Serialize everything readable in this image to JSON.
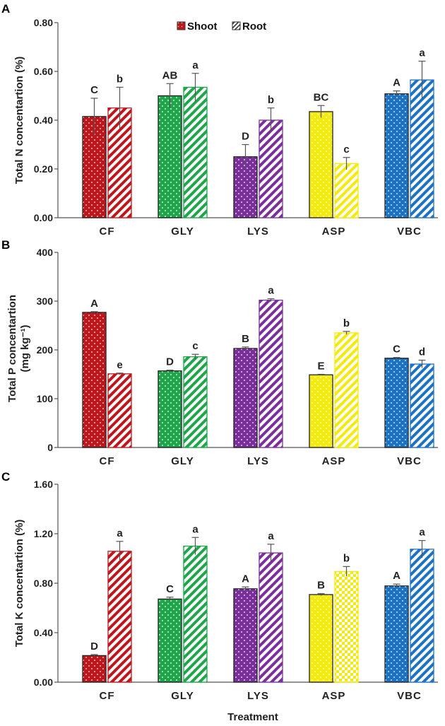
{
  "chart_data": [
    {
      "panel": "A",
      "type": "bar",
      "ylabel": "Total N concentartion (%)",
      "ylim": [
        0,
        0.8
      ],
      "yticks": [
        "0.00",
        "0.20",
        "0.40",
        "0.60",
        "0.80"
      ],
      "categories": [
        "CF",
        "GLY",
        "LYS",
        "ASP",
        "VBC"
      ],
      "legend": [
        "Shoot",
        "Root"
      ],
      "series": [
        {
          "name": "Shoot",
          "values": [
            0.415,
            0.5,
            0.25,
            0.435,
            0.508
          ],
          "errors": [
            0.075,
            0.05,
            0.05,
            0.025,
            0.012
          ],
          "letters": [
            "C",
            "AB",
            "D",
            "BC",
            "A"
          ]
        },
        {
          "name": "Root",
          "values": [
            0.45,
            0.535,
            0.4,
            0.222,
            0.565
          ],
          "errors": [
            0.085,
            0.057,
            0.05,
            0.025,
            0.077
          ],
          "letters": [
            "b",
            "a",
            "b",
            "c",
            "a"
          ]
        }
      ]
    },
    {
      "panel": "B",
      "type": "bar",
      "ylabel": "Total P concentartion",
      "ylabel2": "(mg kg⁻¹)",
      "ylim": [
        0,
        400
      ],
      "yticks": [
        "0",
        "100",
        "200",
        "300",
        "400"
      ],
      "categories": [
        "CF",
        "GLY",
        "LYS",
        "ASP",
        "VBC"
      ],
      "series": [
        {
          "name": "Shoot",
          "values": [
            277,
            157,
            203,
            149,
            183
          ],
          "errors": [
            1.5,
            1.5,
            3,
            1,
            1.5
          ],
          "letters": [
            "A",
            "D",
            "B",
            "E",
            "C"
          ]
        },
        {
          "name": "Root",
          "values": [
            151,
            186,
            302,
            235,
            171
          ],
          "errors": [
            1.5,
            5,
            3,
            3,
            8
          ],
          "letters": [
            "e",
            "c",
            "a",
            "b",
            "d"
          ]
        }
      ]
    },
    {
      "panel": "C",
      "type": "bar",
      "ylabel": "Total K concentartion (%)",
      "xlabel": "Treatment",
      "ylim": [
        0,
        1.6
      ],
      "yticks": [
        "0.00",
        "0.40",
        "0.80",
        "1.20",
        "1.60"
      ],
      "categories": [
        "CF",
        "GLY",
        "LYS",
        "ASP",
        "VBC"
      ],
      "series": [
        {
          "name": "Shoot",
          "values": [
            0.215,
            0.672,
            0.755,
            0.708,
            0.778
          ],
          "errors": [
            0.008,
            0.015,
            0.015,
            0.008,
            0.015
          ],
          "letters": [
            "D",
            "C",
            "A",
            "B",
            "A"
          ]
        },
        {
          "name": "Root",
          "values": [
            1.058,
            1.1,
            1.045,
            0.895,
            1.075
          ],
          "errors": [
            0.08,
            0.07,
            0.07,
            0.04,
            0.07
          ],
          "letters": [
            "a",
            "a",
            "a",
            "b",
            "a"
          ]
        }
      ]
    }
  ],
  "colors": {
    "CF": "#c0161b",
    "GLY": "#1fa64a",
    "LYS": "#7b2f9b",
    "ASP": "#f5ea0d",
    "VBC": "#1c72c4",
    "axis": "#555555",
    "error": "#555555"
  }
}
